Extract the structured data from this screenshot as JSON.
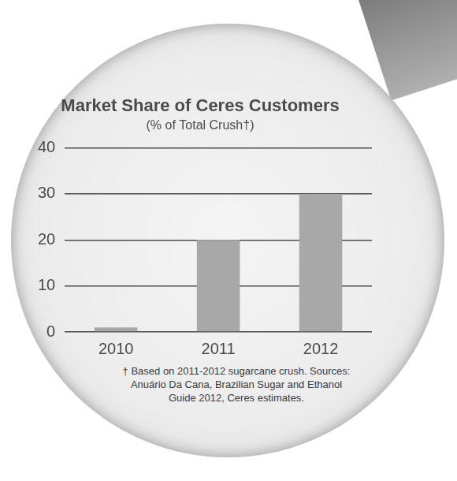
{
  "chart_data": {
    "type": "bar",
    "title": "Market Share of Ceres Customers",
    "subtitle": "(% of Total Crush†)",
    "categories": [
      "2010",
      "2011",
      "2012"
    ],
    "values": [
      1,
      20,
      30
    ],
    "color": "#a8a8a8",
    "ylim": [
      0,
      40
    ],
    "yticks": [
      0,
      10,
      20,
      30,
      40
    ],
    "grid": true,
    "footnote": "† Based on 2011-2012 sugarcane crush. Sources: Anuário Da Cana, Brazilian Sugar and Ethanol Guide 2012, Ceres estimates."
  }
}
